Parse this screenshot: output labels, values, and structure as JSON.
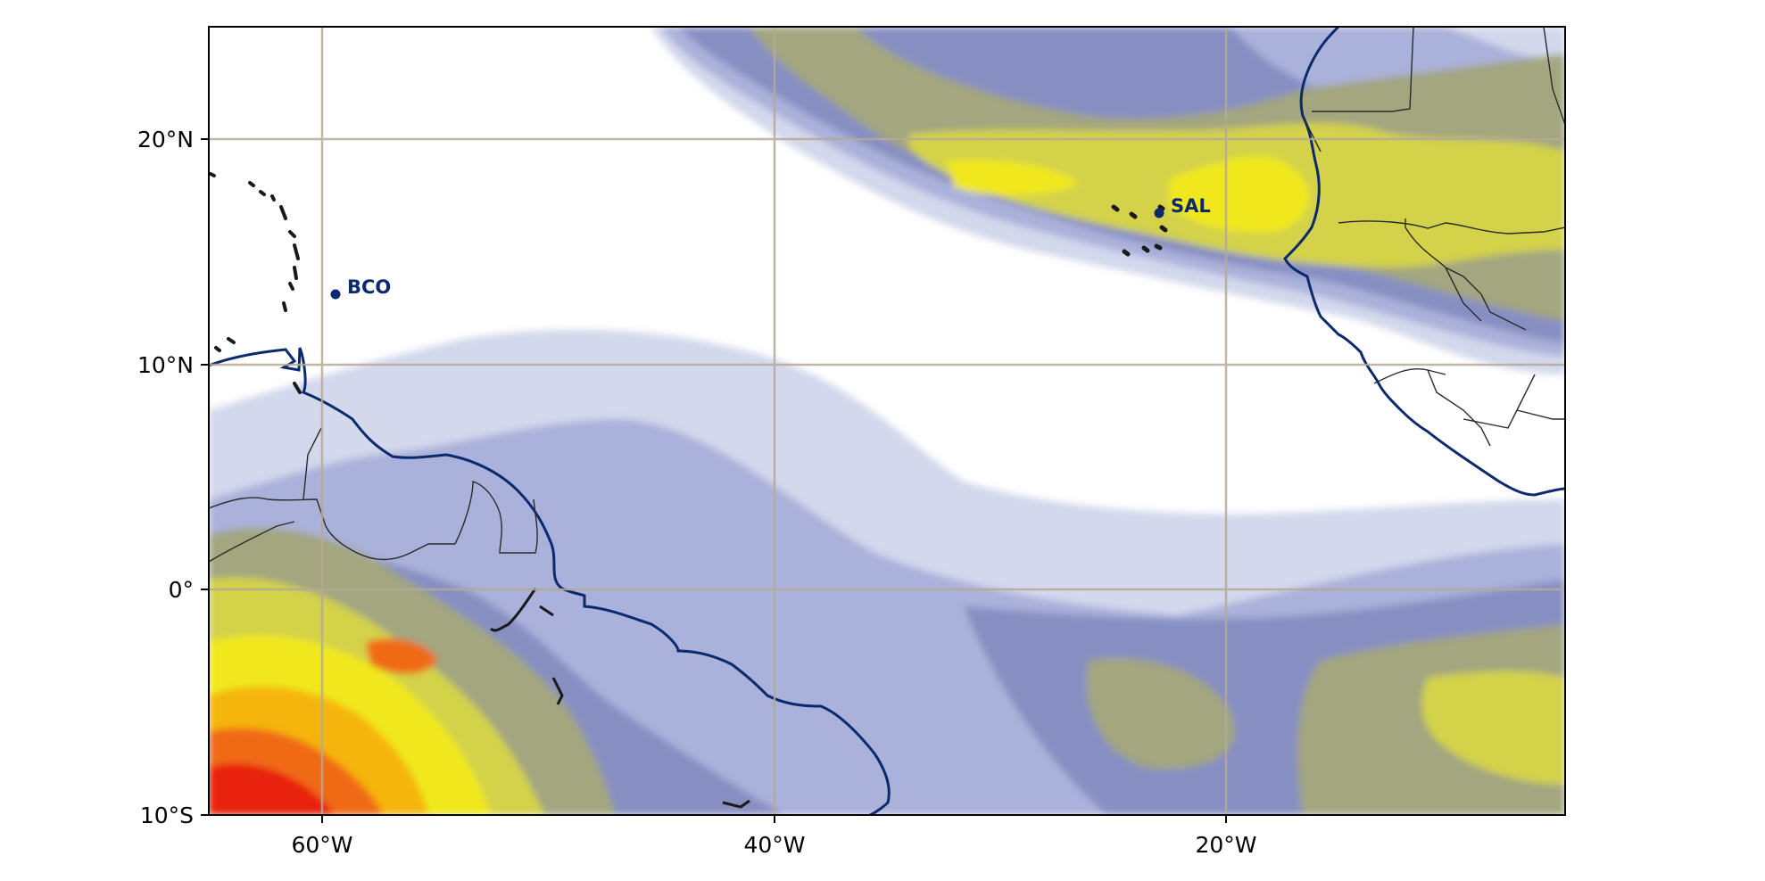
{
  "map": {
    "extent": {
      "lon": [
        -65,
        -5
      ],
      "lat": [
        -10,
        25
      ]
    },
    "lon_ticks": [
      {
        "value": -60,
        "label": "60°W"
      },
      {
        "value": -40,
        "label": "40°W"
      },
      {
        "value": -20,
        "label": "20°W"
      }
    ],
    "lat_ticks": [
      {
        "value": 20,
        "label": "20°N"
      },
      {
        "value": 10,
        "label": "10°N"
      },
      {
        "value": 0,
        "label": "0°"
      },
      {
        "value": -10,
        "label": "10°S"
      }
    ],
    "gridlines": true,
    "colors": {
      "gridline": "#b5aa99",
      "coastline": "#0b2a6e",
      "border": "#2b2b2b",
      "station": "#0b2a6e",
      "levels": [
        "#d3d8ec",
        "#aab1da",
        "#878fc2",
        "#a3a67f",
        "#d3d24a",
        "#f0e81c",
        "#f5b511",
        "#f06a14",
        "#e8210f"
      ]
    },
    "stations": [
      {
        "name": "BCO",
        "lon": -59.4,
        "lat": 13.2
      },
      {
        "name": "SAL",
        "lon": -22.9,
        "lat": 16.8
      }
    ]
  }
}
